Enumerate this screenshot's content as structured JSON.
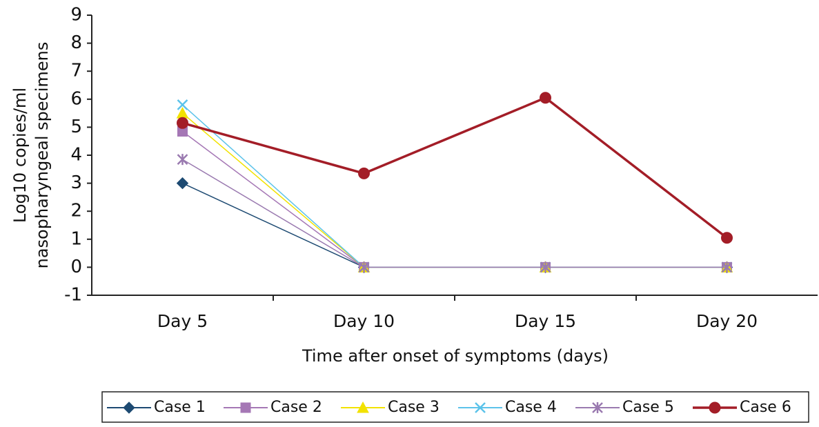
{
  "chart_data": {
    "type": "line",
    "xlabel": "Time after onset of symptoms (days)",
    "ylabel": [
      "Log10 copies/ml",
      "nasopharyngeal specimens"
    ],
    "categories": [
      "Day 5",
      "Day 10",
      "Day 15",
      "Day 20"
    ],
    "series": [
      {
        "name": "Case 1",
        "color": "#1d4a72",
        "marker": "diamond",
        "values": [
          3,
          0,
          0,
          0
        ]
      },
      {
        "name": "Case 2",
        "color": "#a577b5",
        "marker": "square",
        "values": [
          4.85,
          0,
          0,
          0
        ]
      },
      {
        "name": "Case 3",
        "color": "#f2e200",
        "marker": "triangle",
        "values": [
          5.5,
          0,
          0,
          0
        ]
      },
      {
        "name": "Case 4",
        "color": "#5cc3ea",
        "marker": "x",
        "values": [
          5.8,
          0,
          0,
          0
        ]
      },
      {
        "name": "Case 5",
        "color": "#9a7ab0",
        "marker": "star",
        "values": [
          3.85,
          0,
          0,
          0
        ]
      },
      {
        "name": "Case 6",
        "color": "#a31d27",
        "marker": "circle",
        "values": [
          5.15,
          3.35,
          6.05,
          1.05
        ]
      }
    ],
    "ylim": [
      -1,
      9
    ],
    "yticks": [
      -1,
      0,
      1,
      2,
      3,
      4,
      5,
      6,
      7,
      8,
      9
    ],
    "grid": false
  }
}
